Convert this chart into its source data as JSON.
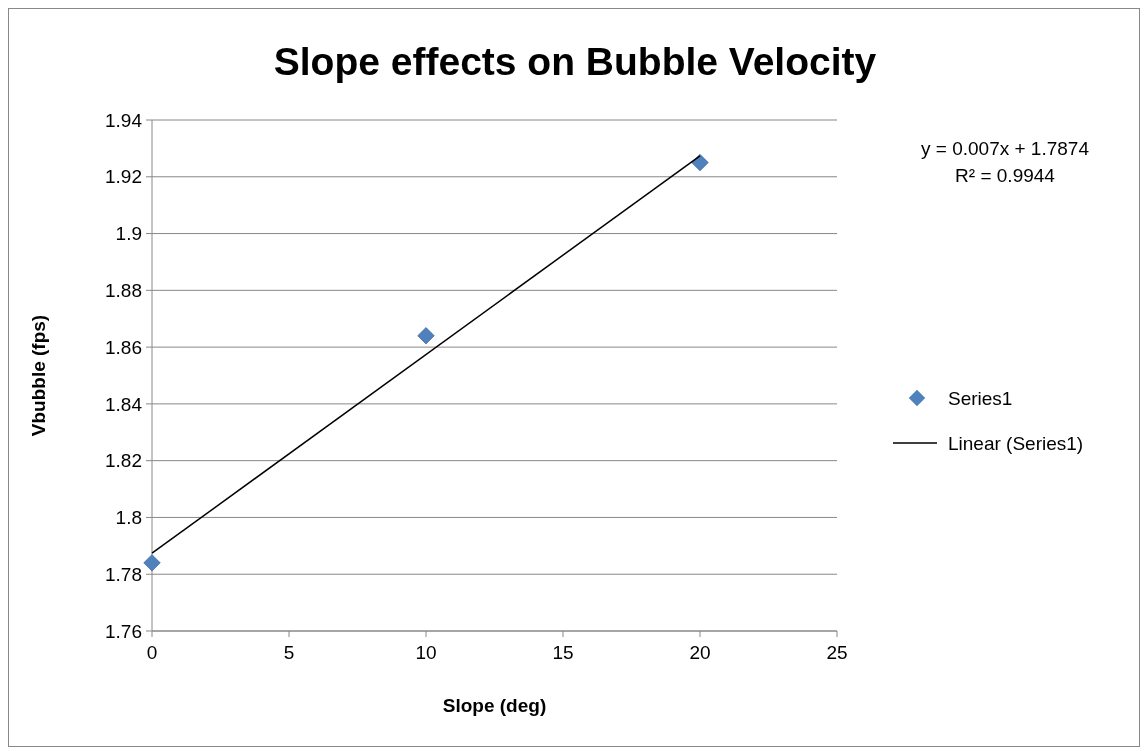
{
  "chart_data": {
    "type": "scatter",
    "title": "Slope effects on Bubble Velocity",
    "xlabel": "Slope (deg)",
    "ylabel": "Vbubble (fps)",
    "annotations": [
      "y = 0.007x + 1.7874",
      "R² = 0.9944"
    ],
    "series": [
      {
        "name": "Series1",
        "color": "#4f81bd",
        "marker": "diamond",
        "x": [
          0,
          10,
          20
        ],
        "values": [
          1.784,
          1.864,
          1.925
        ]
      },
      {
        "name": "Linear (Series1)",
        "type": "line",
        "color": "#000000",
        "marker": "none",
        "x": [
          0,
          20
        ],
        "values": [
          1.7874,
          1.9274
        ]
      }
    ],
    "xlim": [
      0,
      25
    ],
    "xticks": [
      0,
      5,
      10,
      15,
      20,
      25
    ],
    "ylim": [
      1.76,
      1.94
    ],
    "yticks": [
      1.76,
      1.78,
      1.8,
      1.82,
      1.84,
      1.86,
      1.88,
      1.9,
      1.92,
      1.94
    ],
    "grid": "y",
    "legend": "right"
  }
}
